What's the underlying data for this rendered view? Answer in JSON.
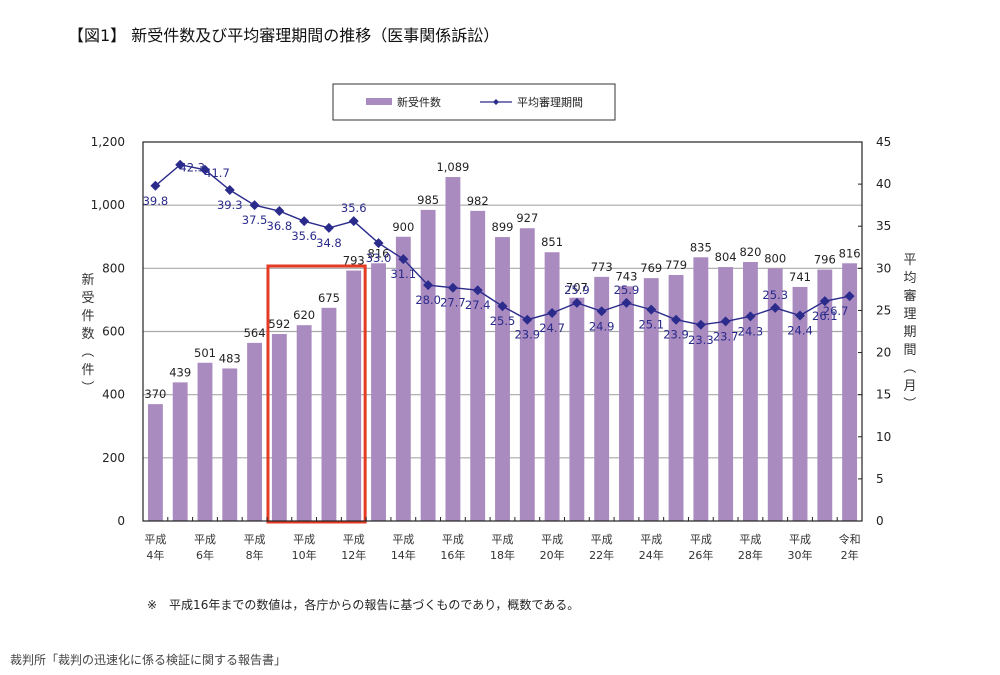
{
  "chart_data": {
    "type": "bar",
    "title": "【図1】 新受件数及び平均審理期間の推移（医事関係訴訟）",
    "categories": [
      "平成4年",
      "平成5年",
      "平成6年",
      "平成7年",
      "平成8年",
      "平成9年",
      "平成10年",
      "平成11年",
      "平成12年",
      "平成13年",
      "平成14年",
      "平成15年",
      "平成16年",
      "平成17年",
      "平成18年",
      "平成19年",
      "平成20年",
      "平成21年",
      "平成22年",
      "平成23年",
      "平成24年",
      "平成25年",
      "平成26年",
      "平成27年",
      "平成28年",
      "平成29年",
      "平成30年",
      "令和元年",
      "令和2年"
    ],
    "x_tick_labels": [
      {
        "index": 0,
        "line1": "平成",
        "line2": "4年"
      },
      {
        "index": 2,
        "line1": "平成",
        "line2": "6年"
      },
      {
        "index": 4,
        "line1": "平成",
        "line2": "8年"
      },
      {
        "index": 6,
        "line1": "平成",
        "line2": "10年"
      },
      {
        "index": 8,
        "line1": "平成",
        "line2": "12年"
      },
      {
        "index": 10,
        "line1": "平成",
        "line2": "14年"
      },
      {
        "index": 12,
        "line1": "平成",
        "line2": "16年"
      },
      {
        "index": 14,
        "line1": "平成",
        "line2": "18年"
      },
      {
        "index": 16,
        "line1": "平成",
        "line2": "20年"
      },
      {
        "index": 18,
        "line1": "平成",
        "line2": "22年"
      },
      {
        "index": 20,
        "line1": "平成",
        "line2": "24年"
      },
      {
        "index": 22,
        "line1": "平成",
        "line2": "26年"
      },
      {
        "index": 24,
        "line1": "平成",
        "line2": "28年"
      },
      {
        "index": 26,
        "line1": "平成",
        "line2": "30年"
      },
      {
        "index": 28,
        "line1": "令和",
        "line2": "2年"
      }
    ],
    "series": [
      {
        "name": "新受件数",
        "type": "bar",
        "axis": "left",
        "color": "#a98bc0",
        "values": [
          370,
          439,
          501,
          483,
          564,
          592,
          620,
          675,
          793,
          816,
          900,
          985,
          1089,
          982,
          899,
          927,
          851,
          707,
          773,
          743,
          769,
          779,
          835,
          804,
          820,
          800,
          741,
          796,
          816
        ],
        "labels": [
          "370",
          "439",
          "501",
          "483",
          "564",
          "592",
          "620",
          "675",
          "793",
          "816",
          "900",
          "985",
          "1,089",
          "982",
          "899",
          "927",
          "851",
          "707",
          "773",
          "743",
          "769",
          "779",
          "835",
          "804",
          "820",
          "800",
          "741",
          "796",
          "816"
        ]
      },
      {
        "name": "平均審理期間",
        "type": "line",
        "axis": "right",
        "color": "#2b2b8c",
        "marker": "diamond",
        "values": [
          39.8,
          42.3,
          41.7,
          39.3,
          37.5,
          36.8,
          35.6,
          34.8,
          35.6,
          33.0,
          31.1,
          28.0,
          27.7,
          27.4,
          25.5,
          23.9,
          24.7,
          25.9,
          24.9,
          25.9,
          25.1,
          23.9,
          23.3,
          23.7,
          24.3,
          25.3,
          24.4,
          26.1,
          26.7
        ],
        "labels": [
          "39.8",
          "42.3",
          "41.7",
          "39.3",
          "37.5",
          "36.8",
          "35.6",
          "34.8",
          "35.6",
          "33.0",
          "31.1",
          "28.0",
          "27.7",
          "27.4",
          "25.5",
          "23.9",
          "24.7",
          "25.9",
          "24.9",
          "25.9",
          "25.1",
          "23.9",
          "23.3",
          "23.7",
          "24.3",
          "25.3",
          "24.4",
          "26.1",
          "26.7"
        ]
      }
    ],
    "left_axis": {
      "label": "新受件数（件）",
      "range": [
        0,
        1200
      ],
      "ticks": [
        0,
        200,
        400,
        600,
        800,
        1000,
        1200
      ],
      "tick_labels": [
        "0",
        "200",
        "400",
        "600",
        "800",
        "1,000",
        "1,200"
      ]
    },
    "right_axis": {
      "label": "平均審理期間（月）",
      "range": [
        0,
        45
      ],
      "ticks": [
        0,
        5,
        10,
        15,
        20,
        25,
        30,
        35,
        40,
        45
      ],
      "tick_labels": [
        "0",
        "5",
        "10",
        "15",
        "20",
        "25",
        "30",
        "35",
        "40",
        "45"
      ]
    },
    "grid": "horizontal at left-axis ticks",
    "legend": {
      "placement": "top-center",
      "entries": [
        "新受件数",
        "平均審理期間"
      ]
    },
    "highlight": {
      "description": "red rectangle around 平成9年–平成12年 bars",
      "from_index": 5,
      "to_index": 8,
      "color": "#e53b24"
    }
  },
  "note": "※　平成16年までの数値は，各庁からの報告に基づくものであり，概数である。",
  "source": "裁判所「裁判の迅速化に係る検証に関する報告書」"
}
